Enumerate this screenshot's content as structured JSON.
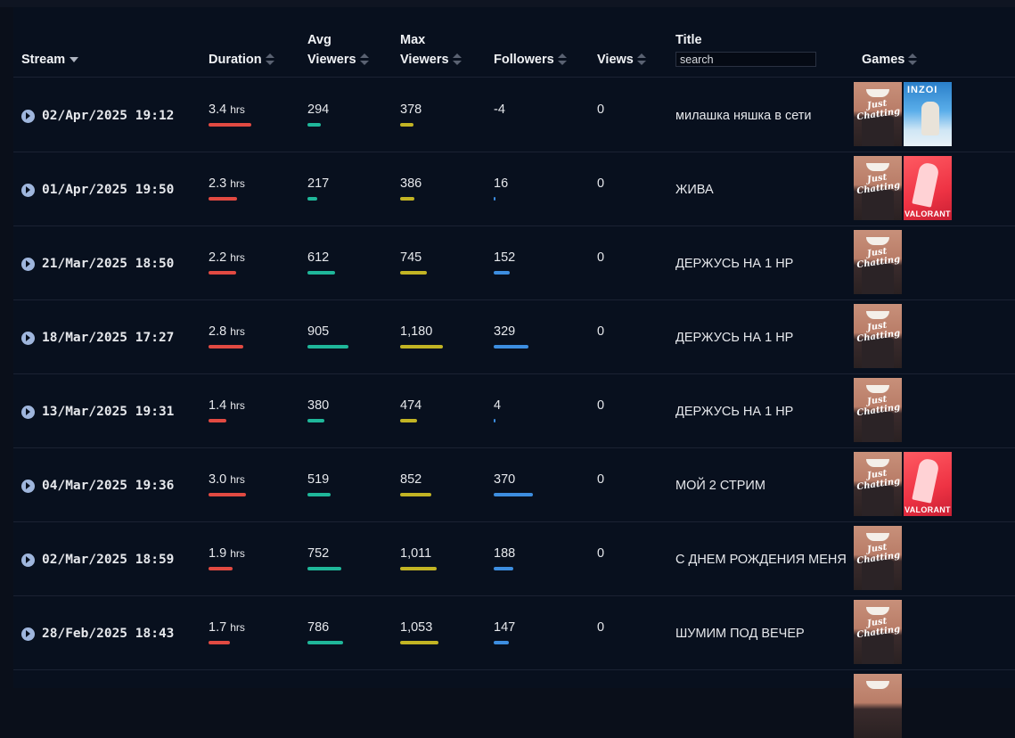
{
  "columns": {
    "stream": "Stream",
    "duration": "Duration",
    "avg_viewers_1": "Avg",
    "avg_viewers_2": "Viewers",
    "max_viewers_1": "Max",
    "max_viewers_2": "Viewers",
    "followers": "Followers",
    "views": "Views",
    "title": "Title",
    "games": "Games"
  },
  "search": {
    "placeholder": "search"
  },
  "colors": {
    "duration": "#e24a42",
    "avg": "#1fb79a",
    "max": "#c2b424",
    "followers": "#3d8ee0"
  },
  "rows": [
    {
      "stream": "02/Apr/2025 19:12",
      "duration": "3.4",
      "duration_unit": "hrs",
      "avg": "294",
      "max": "378",
      "followers": "-4",
      "views": "0",
      "title": "милашка няшка в сети",
      "games": [
        "Just Chatting",
        "inZOI"
      ]
    },
    {
      "stream": "01/Apr/2025 19:50",
      "duration": "2.3",
      "duration_unit": "hrs",
      "avg": "217",
      "max": "386",
      "followers": "16",
      "views": "0",
      "title": "ЖИВА",
      "games": [
        "Just Chatting",
        "VALORANT"
      ]
    },
    {
      "stream": "21/Mar/2025 18:50",
      "duration": "2.2",
      "duration_unit": "hrs",
      "avg": "612",
      "max": "745",
      "followers": "152",
      "views": "0",
      "title": "ДЕРЖУСЬ НА 1 НР",
      "games": [
        "Just Chatting"
      ]
    },
    {
      "stream": "18/Mar/2025 17:27",
      "duration": "2.8",
      "duration_unit": "hrs",
      "avg": "905",
      "max": "1,180",
      "followers": "329",
      "views": "0",
      "title": "ДЕРЖУСЬ НА 1 НР",
      "games": [
        "Just Chatting"
      ]
    },
    {
      "stream": "13/Mar/2025 19:31",
      "duration": "1.4",
      "duration_unit": "hrs",
      "avg": "380",
      "max": "474",
      "followers": "4",
      "views": "0",
      "title": "ДЕРЖУСЬ НА 1 НР",
      "games": [
        "Just Chatting"
      ]
    },
    {
      "stream": "04/Mar/2025 19:36",
      "duration": "3.0",
      "duration_unit": "hrs",
      "avg": "519",
      "max": "852",
      "followers": "370",
      "views": "0",
      "title": "МОЙ 2 СТРИМ",
      "games": [
        "Just Chatting",
        "VALORANT"
      ]
    },
    {
      "stream": "02/Mar/2025 18:59",
      "duration": "1.9",
      "duration_unit": "hrs",
      "avg": "752",
      "max": "1,011",
      "followers": "188",
      "views": "0",
      "title": "С ДНЕМ РОЖДЕНИЯ МЕНЯ",
      "games": [
        "Just Chatting"
      ]
    },
    {
      "stream": "28/Feb/2025 18:43",
      "duration": "1.7",
      "duration_unit": "hrs",
      "avg": "786",
      "max": "1,053",
      "followers": "147",
      "views": "0",
      "title": "ШУМИМ ПОД ВЕЧЕР",
      "games": [
        "Just Chatting"
      ]
    }
  ]
}
